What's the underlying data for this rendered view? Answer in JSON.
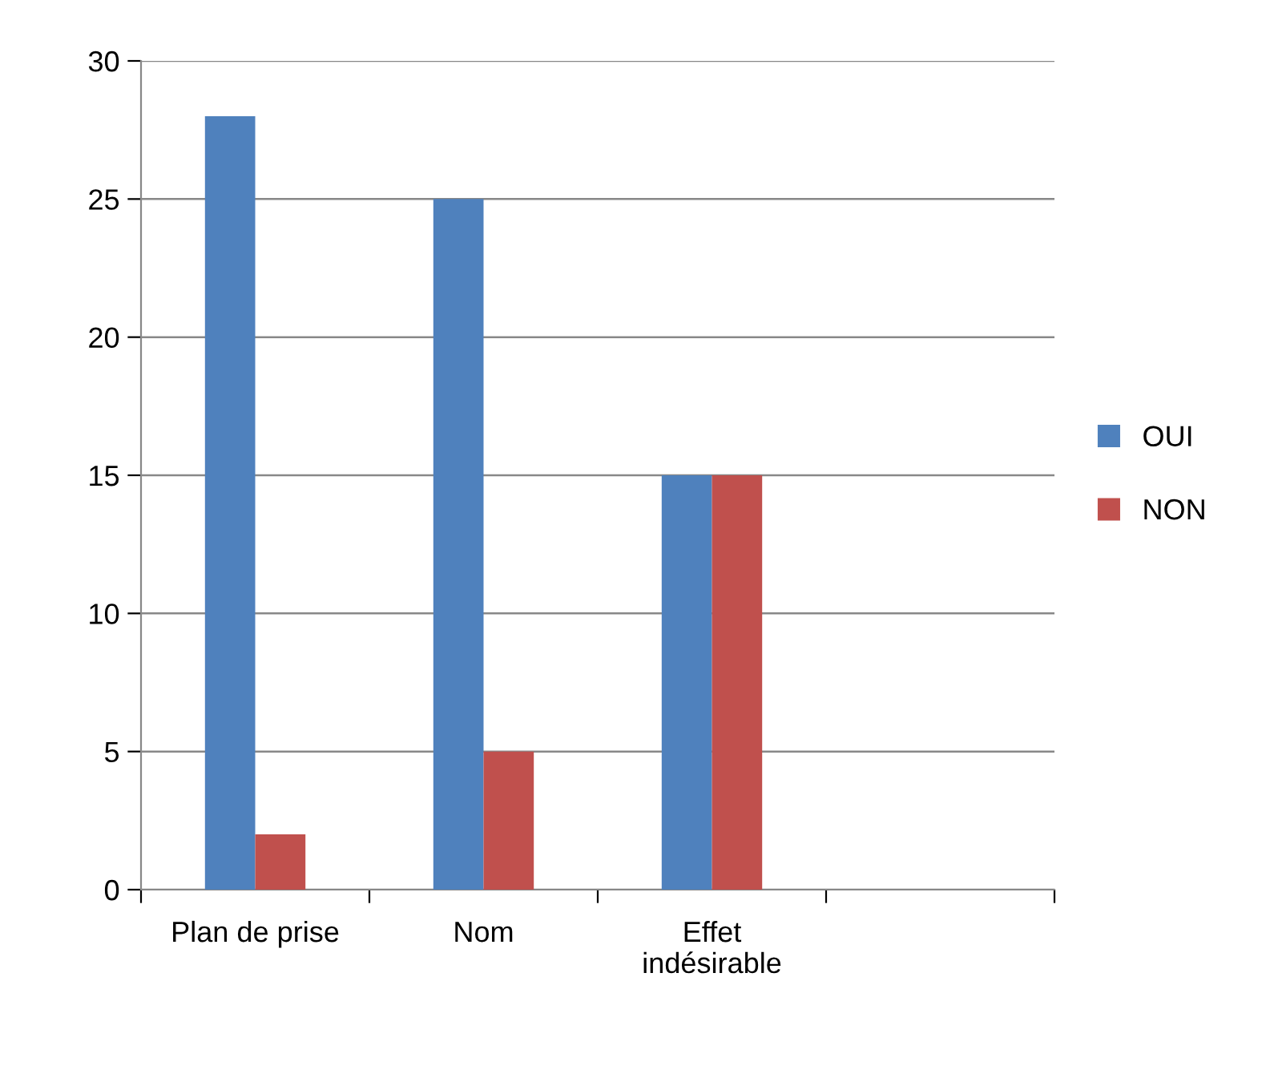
{
  "chart_data": {
    "type": "bar",
    "categories": [
      "Plan de prise",
      "Nom",
      "Effet\nindésirable",
      null
    ],
    "series": [
      {
        "name": "OUI",
        "color": "#4f81bd",
        "values": [
          28,
          25,
          15,
          null
        ]
      },
      {
        "name": "NON",
        "color": "#c0504d",
        "values": [
          2,
          5,
          15,
          null
        ]
      }
    ],
    "ylim": [
      0,
      30
    ],
    "yticks": [
      0,
      5,
      10,
      15,
      20,
      25,
      30
    ],
    "grid": "y",
    "legend": "right"
  }
}
